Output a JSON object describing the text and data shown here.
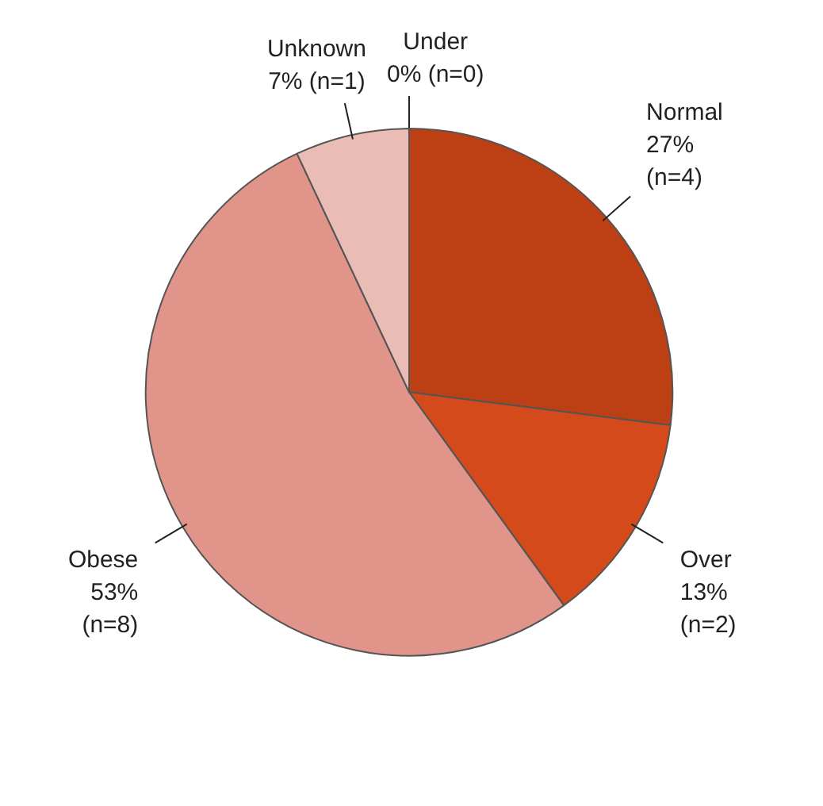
{
  "chart_data": {
    "type": "pie",
    "categories": [
      "Under",
      "Normal",
      "Over",
      "Obese",
      "Unknown"
    ],
    "values": [
      0,
      27,
      13,
      53,
      7
    ],
    "value_labels": [
      "0% (n=0)",
      "27%\n(n=4)",
      "13%\n(n=2)",
      "53%\n(n=8)",
      "7% (n=1)"
    ],
    "colors": [
      "#c0504d",
      "#bc4013",
      "#d54a1a",
      "#e0948a",
      "#e9bdb5"
    ]
  }
}
